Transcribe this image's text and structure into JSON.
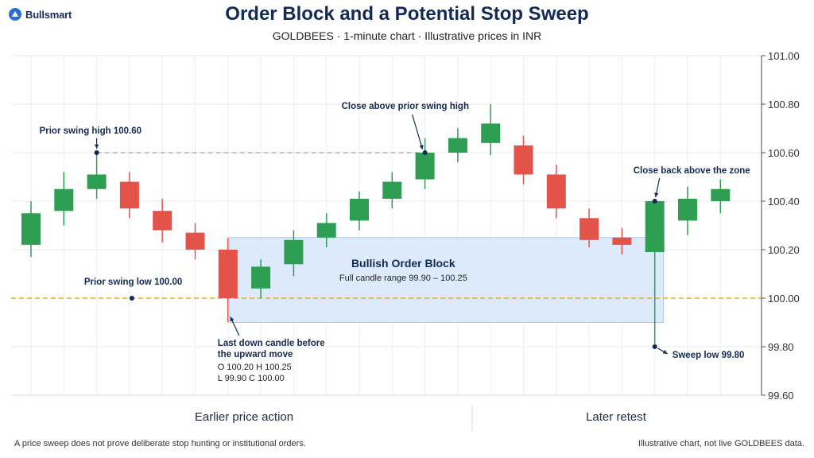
{
  "brand": {
    "name": "Bullsmart",
    "logo_icon": "bull-logo-icon",
    "color": "#2a6fd6"
  },
  "header": {
    "title": "Order Block and a Potential Stop Sweep",
    "subtitle": "GOLDBEES · 1-minute chart · Illustrative prices in INR"
  },
  "sections": {
    "left": "Earlier price action",
    "right": "Later retest"
  },
  "footer": {
    "left": "A price sweep does not prove deliberate stop hunting or institutional orders.",
    "right": "Illustrative chart, not live GOLDBEES data."
  },
  "chart_data": {
    "type": "candlestick",
    "ylim": [
      99.6,
      101.0
    ],
    "y_ticks": [
      "101.00",
      "100.80",
      "100.60",
      "100.40",
      "100.20",
      "100.00",
      "99.80",
      "99.60"
    ],
    "colors": {
      "up": "#2e9e52",
      "down": "#e4534a",
      "zone_fill": "#d6e6fb",
      "zone_border": "#a9c8ee",
      "level": "#f0a81c",
      "swing_high": "#9aa3ad",
      "annotation": "#132a56"
    },
    "candles": [
      {
        "o": 100.22,
        "h": 100.4,
        "l": 100.17,
        "c": 100.35
      },
      {
        "o": 100.36,
        "h": 100.52,
        "l": 100.3,
        "c": 100.45
      },
      {
        "o": 100.45,
        "h": 100.6,
        "l": 100.41,
        "c": 100.51
      },
      {
        "o": 100.48,
        "h": 100.52,
        "l": 100.33,
        "c": 100.37
      },
      {
        "o": 100.36,
        "h": 100.41,
        "l": 100.23,
        "c": 100.28
      },
      {
        "o": 100.27,
        "h": 100.31,
        "l": 100.16,
        "c": 100.2
      },
      {
        "o": 100.2,
        "h": 100.25,
        "l": 99.9,
        "c": 100.0
      },
      {
        "o": 100.04,
        "h": 100.16,
        "l": 100.0,
        "c": 100.13
      },
      {
        "o": 100.14,
        "h": 100.28,
        "l": 100.09,
        "c": 100.24
      },
      {
        "o": 100.25,
        "h": 100.35,
        "l": 100.21,
        "c": 100.31
      },
      {
        "o": 100.32,
        "h": 100.44,
        "l": 100.28,
        "c": 100.41
      },
      {
        "o": 100.41,
        "h": 100.52,
        "l": 100.37,
        "c": 100.48
      },
      {
        "o": 100.49,
        "h": 100.66,
        "l": 100.45,
        "c": 100.6
      },
      {
        "o": 100.6,
        "h": 100.7,
        "l": 100.56,
        "c": 100.66
      },
      {
        "o": 100.64,
        "h": 100.8,
        "l": 100.59,
        "c": 100.72
      },
      {
        "o": 100.63,
        "h": 100.67,
        "l": 100.47,
        "c": 100.51
      },
      {
        "o": 100.51,
        "h": 100.55,
        "l": 100.33,
        "c": 100.37
      },
      {
        "o": 100.33,
        "h": 100.37,
        "l": 100.21,
        "c": 100.24
      },
      {
        "o": 100.25,
        "h": 100.29,
        "l": 100.18,
        "c": 100.22
      },
      {
        "o": 100.19,
        "h": 100.41,
        "l": 99.8,
        "c": 100.4
      },
      {
        "o": 100.32,
        "h": 100.46,
        "l": 100.26,
        "c": 100.41
      },
      {
        "o": 100.4,
        "h": 100.49,
        "l": 100.35,
        "c": 100.45
      }
    ],
    "order_block": {
      "label": "Bullish Order Block",
      "sub": "Full candle range 99.90 – 100.25",
      "low": 99.9,
      "high": 100.25,
      "from_candle": 6,
      "to_candle": 19
    },
    "levels": [
      {
        "name": "prior-swing-low",
        "value": 100.0,
        "label": "Prior swing low 100.00",
        "style": "dashed-orange"
      },
      {
        "name": "prior-swing-high",
        "value": 100.6,
        "label": "Prior swing high 100.60",
        "style": "dashed-gray"
      }
    ],
    "annotations": {
      "swing_high": {
        "text": "Prior swing high 100.60",
        "candle": 2,
        "price": 100.6
      },
      "swing_low": {
        "text": "Prior swing low 100.00",
        "candle": 3,
        "price": 100.0
      },
      "close_above": {
        "text": "Close above prior swing high",
        "candle": 12,
        "price": 100.6
      },
      "close_back": {
        "text": "Close back above the zone",
        "candle": 19,
        "price": 100.4
      },
      "sweep_low": {
        "text": "Sweep low 99.80",
        "candle": 19,
        "price": 99.8
      },
      "last_down": {
        "lines": [
          "Last down candle before",
          "the upward move"
        ],
        "candle": 6,
        "price": 99.93
      },
      "ohlc": [
        "O 100.20  H 100.25",
        "L 99.90  C 100.00"
      ]
    }
  }
}
